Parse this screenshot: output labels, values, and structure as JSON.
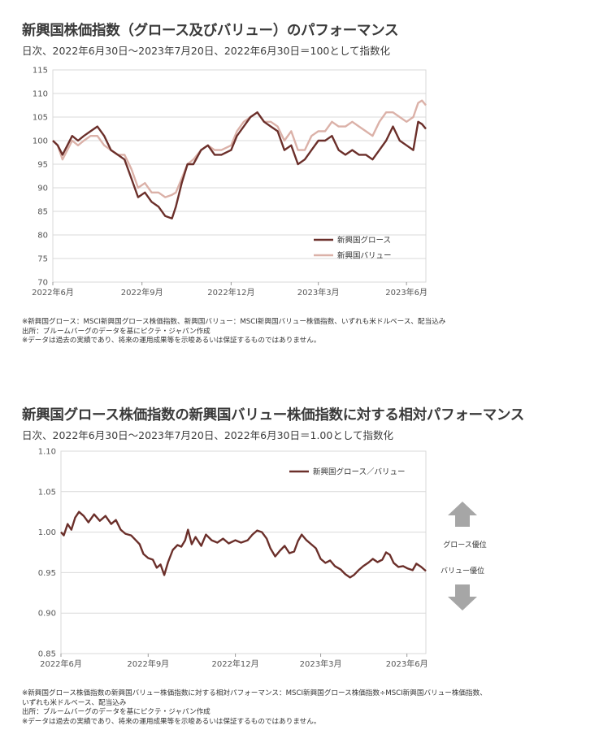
{
  "charts": [
    {
      "title": "新興国株価指数（グロース及びバリュー）のパフォーマンス",
      "subtitle": "日次、2022年6月30日～2023年7月20日、2022年6月30日＝100として指数化",
      "notes": [
        "※新興国グロース：MSCI新興国グロース株価指数、新興国バリュー：MSCI新興国バリュー株価指数、いずれも米ドルベース、配当込み",
        "出所：ブルームバーグのデータを基にピクテ・ジャパン作成",
        "※データは過去の実績であり、将来の運用成果等を示唆あるいは保証するものではありません。"
      ]
    },
    {
      "title": "新興国グロース株価指数の新興国バリュー株価指数に対する相対パフォーマンス",
      "subtitle": "日次、2022年6月30日～2023年7月20日、2022年6月30日＝1.00として指数化",
      "notes": [
        "※新興国グロース株価指数の新興国バリュー株価指数に対する相対パフォーマンス：MSCI新興国グロース株価指数÷MSCI新興国バリュー株価指数、",
        "いずれも米ドルベース、配当込み",
        "出所：ブルームバーグのデータを基にピクテ・ジャパン作成",
        "※データは過去の実績であり、将来の運用成果等を示唆あるいは保証するものではありません。"
      ],
      "annotations": {
        "up": "グロース優位",
        "down": "バリュー優位",
        "up_arrow_icon": "up-arrow-icon",
        "down_arrow_icon": "down-arrow-icon"
      }
    }
  ],
  "chart_data": [
    {
      "type": "line",
      "x_ticks": [
        "2022年6月",
        "2022年9月",
        "2022年12月",
        "2023年3月",
        "2023年6月"
      ],
      "x_tick_dates": [
        "2022-06-30",
        "2022-09-30",
        "2022-12-31",
        "2023-03-31",
        "2023-06-30"
      ],
      "xlim": [
        "2022-06-30",
        "2023-07-20"
      ],
      "ylim": [
        70,
        115
      ],
      "y_ticks": [
        70,
        75,
        80,
        85,
        90,
        95,
        100,
        105,
        110,
        115
      ],
      "grid": true,
      "legend_position": "bottom-right",
      "series": [
        {
          "name": "新興国グロース",
          "color": "#6b2f2a",
          "points": [
            [
              "2022-06-30",
              100
            ],
            [
              "2022-07-05",
              99
            ],
            [
              "2022-07-10",
              97
            ],
            [
              "2022-07-15",
              99
            ],
            [
              "2022-07-20",
              101
            ],
            [
              "2022-07-26",
              100
            ],
            [
              "2022-08-01",
              101
            ],
            [
              "2022-08-08",
              102
            ],
            [
              "2022-08-15",
              103
            ],
            [
              "2022-08-22",
              101
            ],
            [
              "2022-08-29",
              98
            ],
            [
              "2022-09-05",
              97
            ],
            [
              "2022-09-12",
              96
            ],
            [
              "2022-09-19",
              92
            ],
            [
              "2022-09-26",
              88
            ],
            [
              "2022-10-03",
              89
            ],
            [
              "2022-10-10",
              87
            ],
            [
              "2022-10-17",
              86
            ],
            [
              "2022-10-24",
              84
            ],
            [
              "2022-10-31",
              83.5
            ],
            [
              "2022-11-04",
              86
            ],
            [
              "2022-11-10",
              91
            ],
            [
              "2022-11-16",
              95
            ],
            [
              "2022-11-22",
              95
            ],
            [
              "2022-11-30",
              98
            ],
            [
              "2022-12-07",
              99
            ],
            [
              "2022-12-14",
              97
            ],
            [
              "2022-12-21",
              97
            ],
            [
              "2022-12-31",
              98
            ],
            [
              "2023-01-06",
              101
            ],
            [
              "2023-01-13",
              103
            ],
            [
              "2023-01-20",
              105
            ],
            [
              "2023-01-27",
              106
            ],
            [
              "2023-02-03",
              104
            ],
            [
              "2023-02-10",
              103
            ],
            [
              "2023-02-17",
              102
            ],
            [
              "2023-02-24",
              98
            ],
            [
              "2023-03-03",
              99
            ],
            [
              "2023-03-10",
              95
            ],
            [
              "2023-03-17",
              96
            ],
            [
              "2023-03-24",
              98
            ],
            [
              "2023-03-31",
              100
            ],
            [
              "2023-04-07",
              100
            ],
            [
              "2023-04-14",
              101
            ],
            [
              "2023-04-21",
              98
            ],
            [
              "2023-04-28",
              97
            ],
            [
              "2023-05-05",
              98
            ],
            [
              "2023-05-12",
              97
            ],
            [
              "2023-05-19",
              97
            ],
            [
              "2023-05-26",
              96
            ],
            [
              "2023-06-02",
              98
            ],
            [
              "2023-06-09",
              100
            ],
            [
              "2023-06-16",
              103
            ],
            [
              "2023-06-23",
              100
            ],
            [
              "2023-06-30",
              99
            ],
            [
              "2023-07-07",
              98
            ],
            [
              "2023-07-12",
              104
            ],
            [
              "2023-07-16",
              103.5
            ],
            [
              "2023-07-20",
              102.5
            ]
          ]
        },
        {
          "name": "新興国バリュー",
          "color": "#dbb1a8",
          "points": [
            [
              "2022-06-30",
              100
            ],
            [
              "2022-07-05",
              99
            ],
            [
              "2022-07-10",
              96
            ],
            [
              "2022-07-15",
              98
            ],
            [
              "2022-07-20",
              100
            ],
            [
              "2022-07-26",
              99
            ],
            [
              "2022-08-01",
              100
            ],
            [
              "2022-08-08",
              101
            ],
            [
              "2022-08-15",
              101
            ],
            [
              "2022-08-22",
              99
            ],
            [
              "2022-08-29",
              98
            ],
            [
              "2022-09-05",
              97
            ],
            [
              "2022-09-12",
              97
            ],
            [
              "2022-09-19",
              94
            ],
            [
              "2022-09-26",
              90
            ],
            [
              "2022-10-03",
              91
            ],
            [
              "2022-10-10",
              89
            ],
            [
              "2022-10-17",
              89
            ],
            [
              "2022-10-24",
              88
            ],
            [
              "2022-10-31",
              88.5
            ],
            [
              "2022-11-04",
              89
            ],
            [
              "2022-11-10",
              92
            ],
            [
              "2022-11-16",
              95
            ],
            [
              "2022-11-22",
              96
            ],
            [
              "2022-11-30",
              98
            ],
            [
              "2022-12-07",
              99
            ],
            [
              "2022-12-14",
              98
            ],
            [
              "2022-12-21",
              98
            ],
            [
              "2022-12-31",
              99
            ],
            [
              "2023-01-06",
              102
            ],
            [
              "2023-01-13",
              104
            ],
            [
              "2023-01-20",
              105
            ],
            [
              "2023-01-27",
              106
            ],
            [
              "2023-02-03",
              104
            ],
            [
              "2023-02-10",
              104
            ],
            [
              "2023-02-17",
              103
            ],
            [
              "2023-02-24",
              100
            ],
            [
              "2023-03-03",
              102
            ],
            [
              "2023-03-10",
              98
            ],
            [
              "2023-03-17",
              98
            ],
            [
              "2023-03-24",
              101
            ],
            [
              "2023-03-31",
              102
            ],
            [
              "2023-04-07",
              102
            ],
            [
              "2023-04-14",
              104
            ],
            [
              "2023-04-21",
              103
            ],
            [
              "2023-04-28",
              103
            ],
            [
              "2023-05-05",
              104
            ],
            [
              "2023-05-12",
              103
            ],
            [
              "2023-05-19",
              102
            ],
            [
              "2023-05-26",
              101
            ],
            [
              "2023-06-02",
              104
            ],
            [
              "2023-06-09",
              106
            ],
            [
              "2023-06-16",
              106
            ],
            [
              "2023-06-23",
              105
            ],
            [
              "2023-06-30",
              104
            ],
            [
              "2023-07-07",
              105
            ],
            [
              "2023-07-12",
              108
            ],
            [
              "2023-07-16",
              108.5
            ],
            [
              "2023-07-20",
              107.5
            ]
          ]
        }
      ]
    },
    {
      "type": "line",
      "x_ticks": [
        "2022年6月",
        "2022年9月",
        "2022年12月",
        "2023年3月",
        "2023年6月"
      ],
      "x_tick_dates": [
        "2022-06-30",
        "2022-09-30",
        "2022-12-31",
        "2023-03-31",
        "2023-06-30"
      ],
      "xlim": [
        "2022-06-30",
        "2023-07-20"
      ],
      "ylim": [
        0.85,
        1.1
      ],
      "y_ticks": [
        "0.85",
        "0.90",
        "0.95",
        "1.00",
        "1.05",
        "1.10"
      ],
      "grid": true,
      "legend_position": "top-right",
      "series": [
        {
          "name": "新興国グロース／バリュー",
          "color": "#6b2f2a",
          "points": [
            [
              "2022-06-30",
              1.0
            ],
            [
              "2022-07-03",
              0.996
            ],
            [
              "2022-07-07",
              1.01
            ],
            [
              "2022-07-11",
              1.003
            ],
            [
              "2022-07-15",
              1.018
            ],
            [
              "2022-07-19",
              1.025
            ],
            [
              "2022-07-24",
              1.02
            ],
            [
              "2022-07-29",
              1.012
            ],
            [
              "2022-08-04",
              1.022
            ],
            [
              "2022-08-10",
              1.014
            ],
            [
              "2022-08-16",
              1.02
            ],
            [
              "2022-08-22",
              1.01
            ],
            [
              "2022-08-27",
              1.015
            ],
            [
              "2022-09-01",
              1.003
            ],
            [
              "2022-09-06",
              0.998
            ],
            [
              "2022-09-12",
              0.996
            ],
            [
              "2022-09-17",
              0.99
            ],
            [
              "2022-09-21",
              0.985
            ],
            [
              "2022-09-25",
              0.973
            ],
            [
              "2022-09-30",
              0.968
            ],
            [
              "2022-10-05",
              0.966
            ],
            [
              "2022-10-09",
              0.956
            ],
            [
              "2022-10-13",
              0.96
            ],
            [
              "2022-10-17",
              0.947
            ],
            [
              "2022-10-21",
              0.963
            ],
            [
              "2022-10-26",
              0.978
            ],
            [
              "2022-10-31",
              0.984
            ],
            [
              "2022-11-04",
              0.982
            ],
            [
              "2022-11-08",
              0.99
            ],
            [
              "2022-11-11",
              1.003
            ],
            [
              "2022-11-15",
              0.985
            ],
            [
              "2022-11-19",
              0.994
            ],
            [
              "2022-11-25",
              0.983
            ],
            [
              "2022-11-30",
              0.997
            ],
            [
              "2022-12-06",
              0.99
            ],
            [
              "2022-12-12",
              0.987
            ],
            [
              "2022-12-18",
              0.992
            ],
            [
              "2022-12-24",
              0.986
            ],
            [
              "2022-12-31",
              0.99
            ],
            [
              "2023-01-06",
              0.987
            ],
            [
              "2023-01-13",
              0.99
            ],
            [
              "2023-01-18",
              0.997
            ],
            [
              "2023-01-23",
              1.002
            ],
            [
              "2023-01-28",
              1.0
            ],
            [
              "2023-02-02",
              0.992
            ],
            [
              "2023-02-06",
              0.98
            ],
            [
              "2023-02-11",
              0.97
            ],
            [
              "2023-02-16",
              0.977
            ],
            [
              "2023-02-21",
              0.983
            ],
            [
              "2023-02-26",
              0.974
            ],
            [
              "2023-03-03",
              0.976
            ],
            [
              "2023-03-07",
              0.989
            ],
            [
              "2023-03-11",
              0.997
            ],
            [
              "2023-03-16",
              0.99
            ],
            [
              "2023-03-21",
              0.985
            ],
            [
              "2023-03-26",
              0.98
            ],
            [
              "2023-03-31",
              0.967
            ],
            [
              "2023-04-05",
              0.962
            ],
            [
              "2023-04-10",
              0.965
            ],
            [
              "2023-04-15",
              0.958
            ],
            [
              "2023-04-21",
              0.954
            ],
            [
              "2023-04-26",
              0.948
            ],
            [
              "2023-05-01",
              0.944
            ],
            [
              "2023-05-05",
              0.947
            ],
            [
              "2023-05-10",
              0.953
            ],
            [
              "2023-05-15",
              0.958
            ],
            [
              "2023-05-20",
              0.962
            ],
            [
              "2023-05-25",
              0.967
            ],
            [
              "2023-05-30",
              0.963
            ],
            [
              "2023-06-04",
              0.966
            ],
            [
              "2023-06-08",
              0.975
            ],
            [
              "2023-06-12",
              0.972
            ],
            [
              "2023-06-16",
              0.962
            ],
            [
              "2023-06-21",
              0.957
            ],
            [
              "2023-06-26",
              0.958
            ],
            [
              "2023-07-01",
              0.955
            ],
            [
              "2023-07-06",
              0.953
            ],
            [
              "2023-07-10",
              0.961
            ],
            [
              "2023-07-15",
              0.957
            ],
            [
              "2023-07-20",
              0.952
            ]
          ]
        }
      ]
    }
  ]
}
